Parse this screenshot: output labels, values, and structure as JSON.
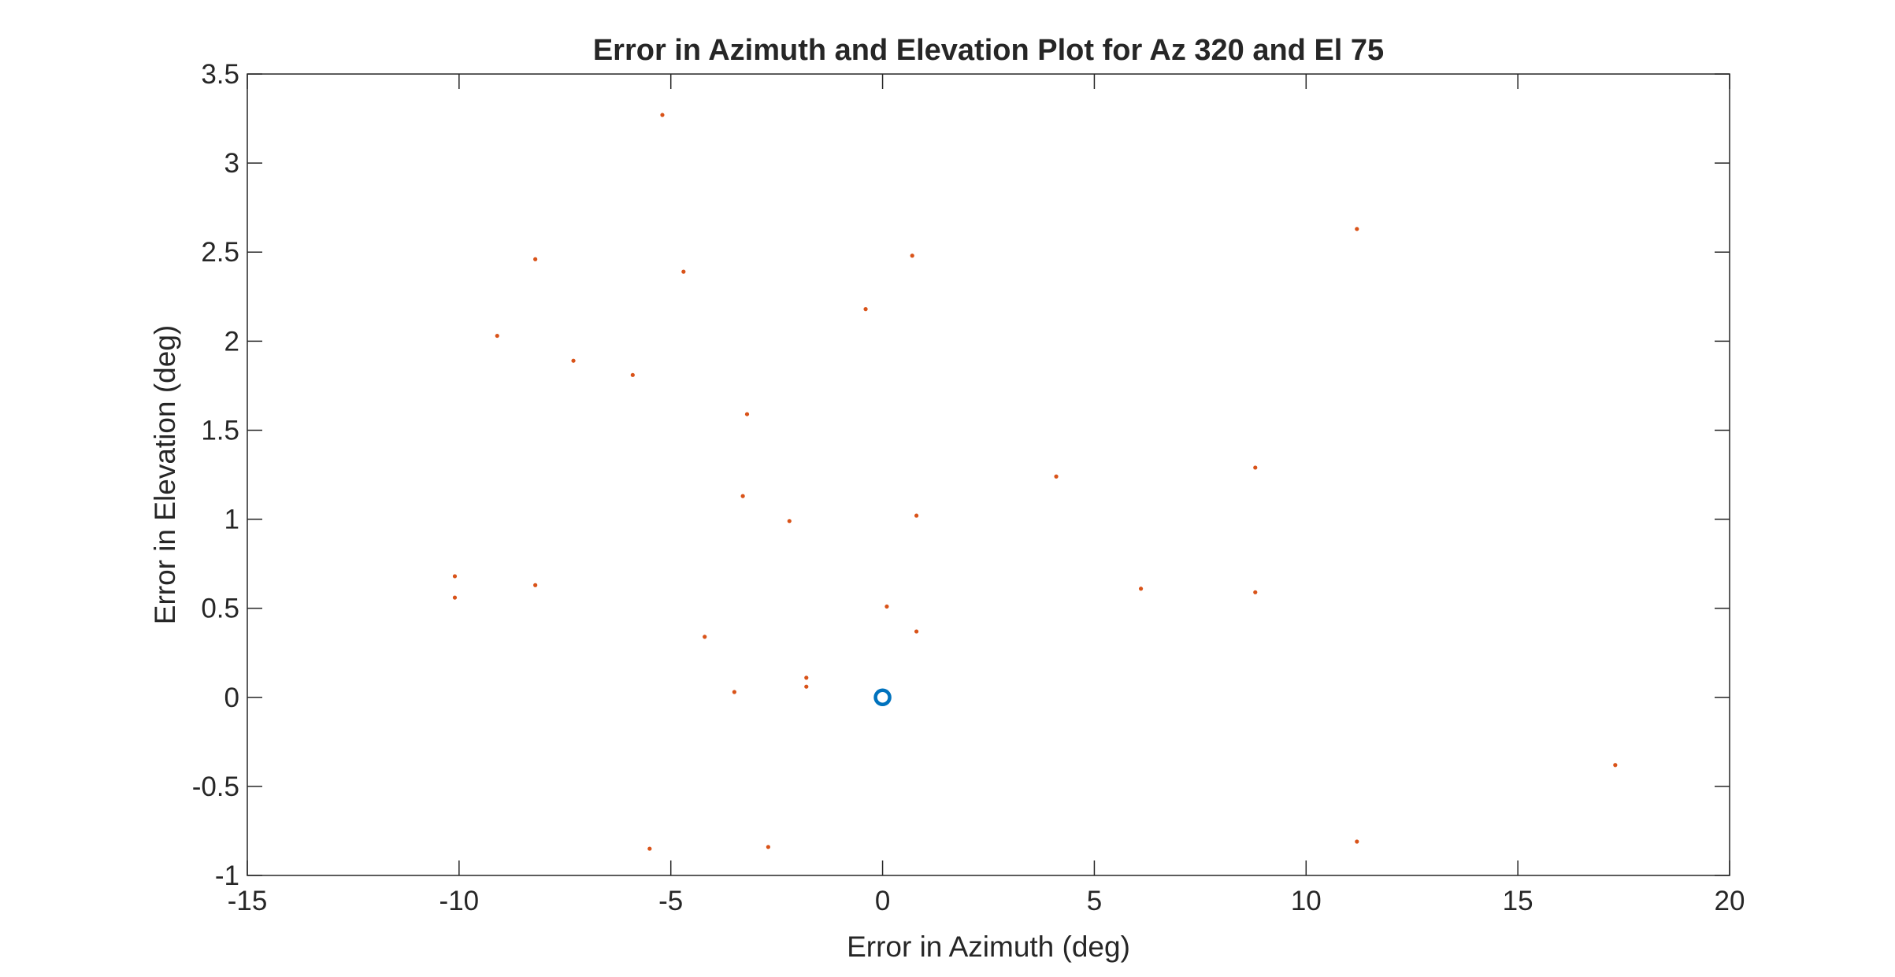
{
  "chart_data": {
    "type": "scatter",
    "title": "Error in Azimuth and Elevation Plot for Az 320 and El 75",
    "xlabel": "Error in Azimuth (deg)",
    "ylabel": "Error in Elevation (deg)",
    "xlim": [
      -15,
      20
    ],
    "ylim": [
      -1,
      3.5
    ],
    "xticks": [
      -15,
      -10,
      -5,
      0,
      5,
      10,
      15,
      20
    ],
    "yticks": [
      -1,
      -0.5,
      0,
      0.5,
      1,
      1.5,
      2,
      2.5,
      3,
      3.5
    ],
    "xtick_labels": [
      "-15",
      "-10",
      "-5",
      "0",
      "5",
      "10",
      "15",
      "20"
    ],
    "ytick_labels": [
      "-1",
      "-0.5",
      "0",
      "0.5",
      "1",
      "1.5",
      "2",
      "2.5",
      "3",
      "3.5"
    ],
    "grid": false,
    "box": true,
    "series": [
      {
        "marker": "o",
        "color": "#0072BD",
        "x": [
          0
        ],
        "y": [
          0
        ]
      },
      {
        "marker": ".",
        "color": "#D95319",
        "x": [
          -5.2,
          -8.2,
          -4.7,
          0.7,
          11.2,
          -9.1,
          -0.4,
          -7.3,
          -5.9,
          -3.2,
          4.1,
          8.8,
          -3.3,
          -2.2,
          0.8,
          -10.1,
          -8.2,
          -10.1,
          6.1,
          8.8,
          0.1,
          0.8,
          -4.2,
          -1.8,
          -1.8,
          -3.5,
          17.3,
          11.2,
          -5.5,
          -2.7
        ],
        "y": [
          3.27,
          2.46,
          2.39,
          2.48,
          2.63,
          2.03,
          2.18,
          1.89,
          1.81,
          1.59,
          1.24,
          1.29,
          1.13,
          0.99,
          1.02,
          0.68,
          0.63,
          0.56,
          0.61,
          0.59,
          0.51,
          0.37,
          0.34,
          0.11,
          0.06,
          0.03,
          -0.38,
          -0.81,
          -0.85,
          -0.84
        ]
      }
    ]
  }
}
